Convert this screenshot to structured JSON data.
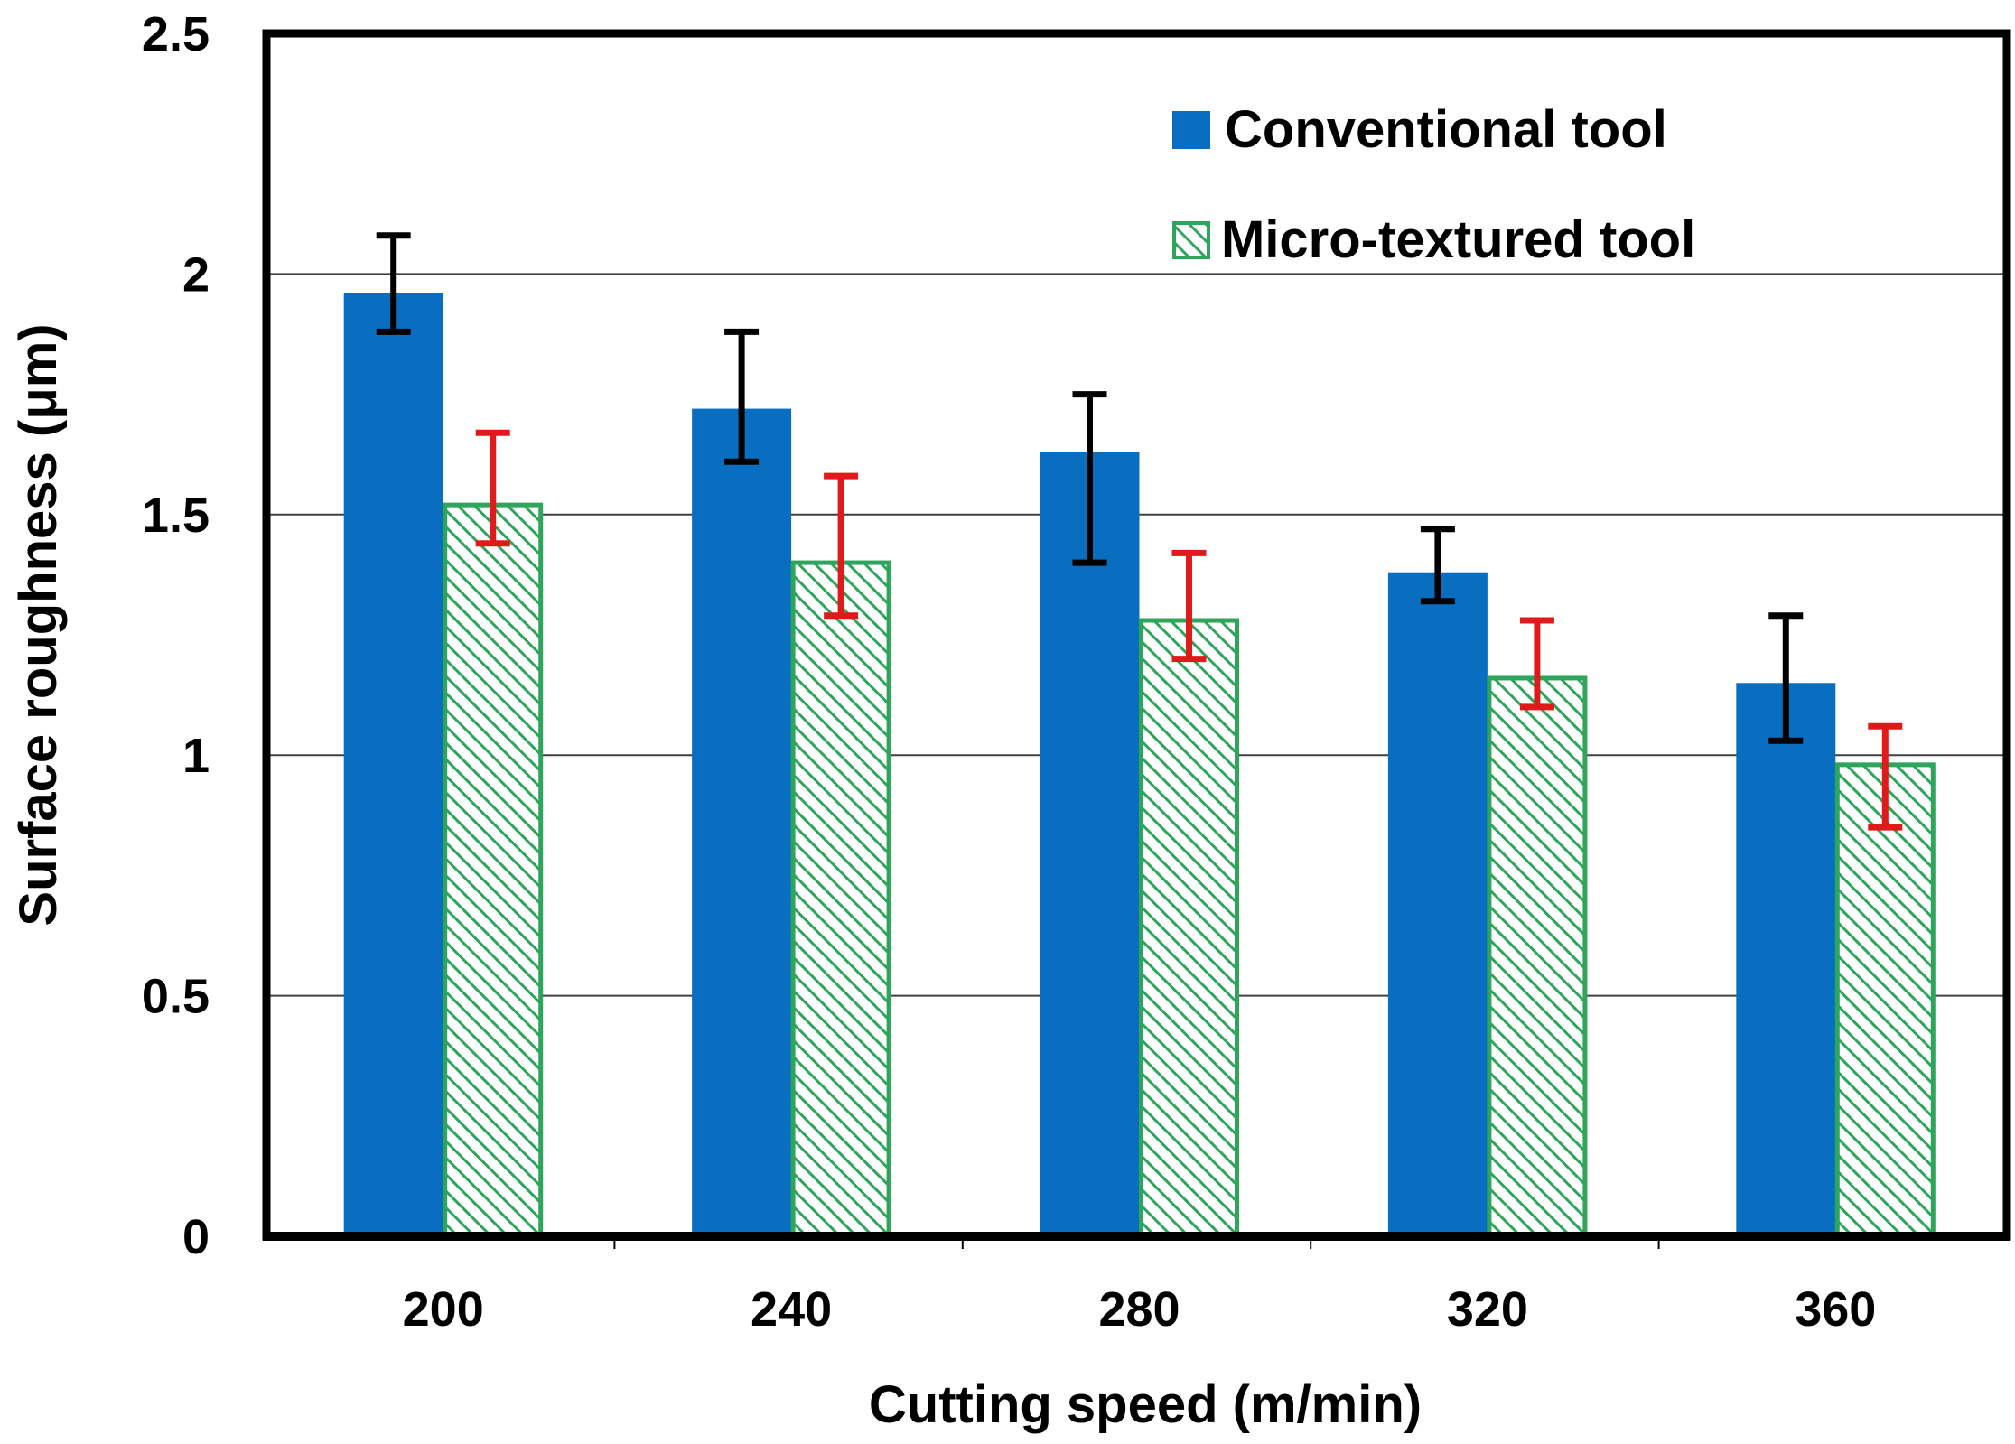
{
  "colors": {
    "conventional": "#0A6EC0",
    "micro_stroke": "#2EA55A",
    "micro_hatch": "#2EA55A",
    "error_conventional": "#000000",
    "error_micro": "#E01A1A",
    "grid": "#404040",
    "frame": "#000000"
  },
  "chart_data": {
    "type": "bar",
    "title": "",
    "xlabel": "Cutting speed (m/min)",
    "ylabel": "Surface roughness (μm)",
    "categories": [
      "200",
      "240",
      "280",
      "320",
      "360"
    ],
    "ylim": [
      0,
      2.5
    ],
    "yticks": [
      0,
      0.5,
      1,
      1.5,
      2,
      2.5
    ],
    "ytick_labels": [
      "0",
      "0.5",
      "1",
      "1.5",
      "2",
      "2.5"
    ],
    "grid": true,
    "legend_position": "top-right",
    "series": [
      {
        "name": "Conventional tool",
        "pattern": "solid",
        "values": [
          1.96,
          1.72,
          1.63,
          1.38,
          1.15
        ],
        "error_low": [
          1.88,
          1.61,
          1.4,
          1.32,
          1.03
        ],
        "error_high": [
          2.08,
          1.88,
          1.75,
          1.47,
          1.29
        ]
      },
      {
        "name": "Micro-textured tool",
        "pattern": "hatched",
        "values": [
          1.52,
          1.4,
          1.28,
          1.16,
          0.98
        ],
        "error_low": [
          1.44,
          1.29,
          1.2,
          1.1,
          0.85
        ],
        "error_high": [
          1.67,
          1.58,
          1.42,
          1.28,
          1.06
        ]
      }
    ]
  }
}
